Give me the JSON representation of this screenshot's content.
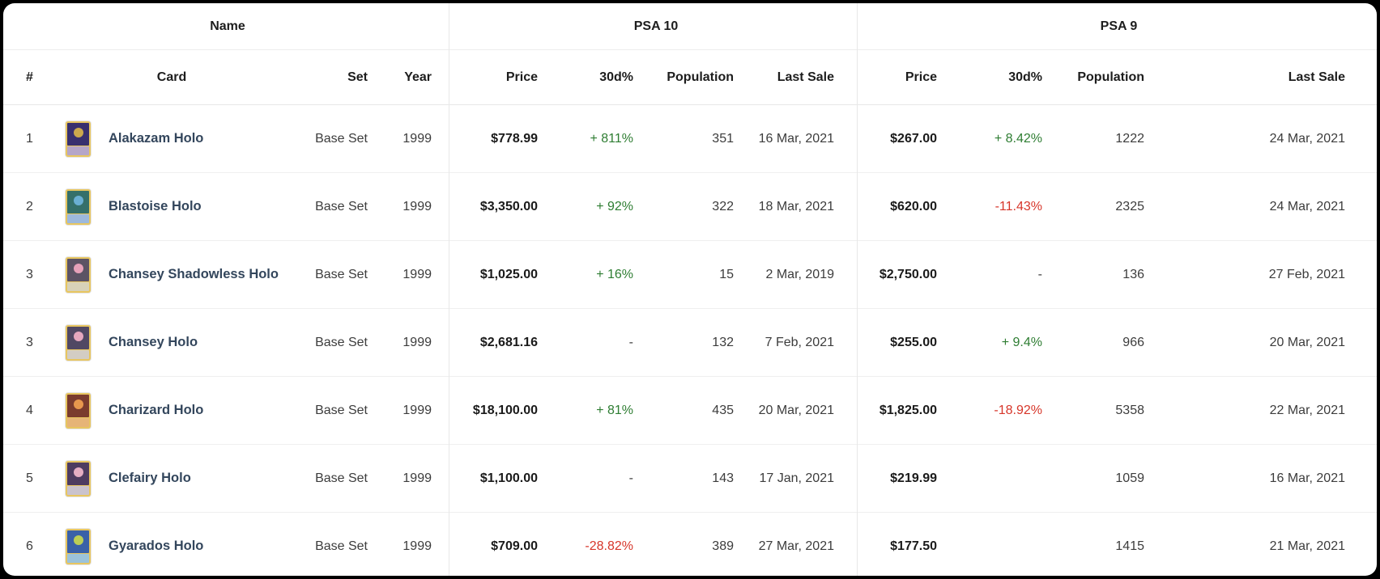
{
  "colors": {
    "positive": "#2e7d32",
    "negative": "#d7362a",
    "neutral": "#3c3c3c",
    "card_border": "#e8c660",
    "card_name_text": "#33465c"
  },
  "table": {
    "groups": [
      {
        "label": "Name",
        "columns": [
          "#",
          "Card",
          "Set",
          "Year"
        ]
      },
      {
        "label": "PSA 10",
        "columns": [
          "Price",
          "30d%",
          "Population",
          "Last Sale"
        ]
      },
      {
        "label": "PSA 9",
        "columns": [
          "Price",
          "30d%",
          "Population",
          "Last Sale"
        ]
      }
    ],
    "rows": [
      {
        "num": "1",
        "card": "Alakazam Holo",
        "set": "Base Set",
        "year": "1999",
        "thumb": {
          "art": "#38306e",
          "accent": "#d8b44a",
          "body": "#b5a6c8"
        },
        "psa10": {
          "price": "$778.99",
          "change": "+ 811%",
          "dir": "up",
          "population": "351",
          "last_sale": "16 Mar, 2021"
        },
        "psa9": {
          "price": "$267.00",
          "change": "+ 8.42%",
          "dir": "up",
          "population": "1222",
          "last_sale": "24 Mar, 2021"
        }
      },
      {
        "num": "2",
        "card": "Blastoise Holo",
        "set": "Base Set",
        "year": "1999",
        "thumb": {
          "art": "#35706a",
          "accent": "#6fb4dc",
          "body": "#9db9dc"
        },
        "psa10": {
          "price": "$3,350.00",
          "change": "+ 92%",
          "dir": "up",
          "population": "322",
          "last_sale": "18 Mar, 2021"
        },
        "psa9": {
          "price": "$620.00",
          "change": "-11.43%",
          "dir": "down",
          "population": "2325",
          "last_sale": "24 Mar, 2021"
        }
      },
      {
        "num": "3",
        "card": "Chansey Shadowless Holo",
        "set": "Base Set",
        "year": "1999",
        "thumb": {
          "art": "#5c5364",
          "accent": "#f2a8c0",
          "body": "#d8d2b8"
        },
        "psa10": {
          "price": "$1,025.00",
          "change": "+ 16%",
          "dir": "up",
          "population": "15",
          "last_sale": "2 Mar, 2019"
        },
        "psa9": {
          "price": "$2,750.00",
          "change": "-",
          "dir": "neutral",
          "population": "136",
          "last_sale": "27 Feb, 2021"
        }
      },
      {
        "num": "3",
        "card": "Chansey Holo",
        "set": "Base Set",
        "year": "1999",
        "thumb": {
          "art": "#514863",
          "accent": "#f2b0c6",
          "body": "#d3cdc4"
        },
        "psa10": {
          "price": "$2,681.16",
          "change": "-",
          "dir": "neutral",
          "population": "132",
          "last_sale": "7 Feb, 2021"
        },
        "psa9": {
          "price": "$255.00",
          "change": "+ 9.4%",
          "dir": "up",
          "population": "966",
          "last_sale": "20 Mar, 2021"
        }
      },
      {
        "num": "4",
        "card": "Charizard Holo",
        "set": "Base Set",
        "year": "1999",
        "thumb": {
          "art": "#7a3b2d",
          "accent": "#f0a050",
          "body": "#e6b477"
        },
        "psa10": {
          "price": "$18,100.00",
          "change": "+ 81%",
          "dir": "up",
          "population": "435",
          "last_sale": "20 Mar, 2021"
        },
        "psa9": {
          "price": "$1,825.00",
          "change": "-18.92%",
          "dir": "down",
          "population": "5358",
          "last_sale": "22 Mar, 2021"
        }
      },
      {
        "num": "5",
        "card": "Clefairy Holo",
        "set": "Base Set",
        "year": "1999",
        "thumb": {
          "art": "#4e3c60",
          "accent": "#f2b8cc",
          "body": "#cac3cd"
        },
        "psa10": {
          "price": "$1,100.00",
          "change": "-",
          "dir": "neutral",
          "population": "143",
          "last_sale": "17 Jan, 2021"
        },
        "psa9": {
          "price": "$219.99",
          "change": "",
          "dir": "neutral",
          "population": "1059",
          "last_sale": "16 Mar, 2021"
        }
      },
      {
        "num": "6",
        "card": "Gyarados Holo",
        "set": "Base Set",
        "year": "1999",
        "thumb": {
          "art": "#3a61a8",
          "accent": "#c8d84e",
          "body": "#9cc3da"
        },
        "psa10": {
          "price": "$709.00",
          "change": "-28.82%",
          "dir": "down",
          "population": "389",
          "last_sale": "27 Mar, 2021"
        },
        "psa9": {
          "price": "$177.50",
          "change": "",
          "dir": "neutral",
          "population": "1415",
          "last_sale": "21 Mar, 2021"
        }
      }
    ]
  }
}
